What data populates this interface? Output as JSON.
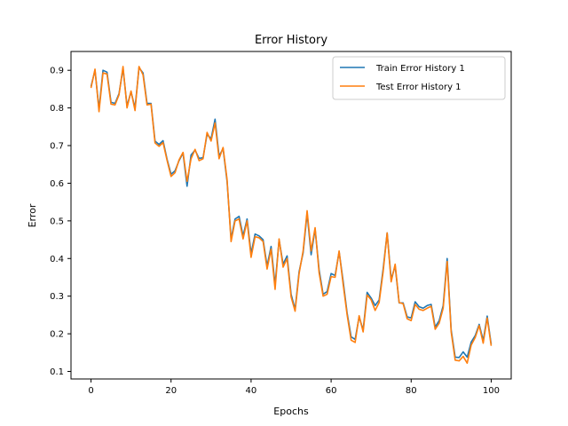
{
  "chart_data": {
    "type": "line",
    "title": "Error History",
    "xlabel": "Epochs",
    "ylabel": "Error",
    "xlim": [
      -5,
      105
    ],
    "ylim": [
      0.08,
      0.95
    ],
    "xticks": [
      0,
      20,
      40,
      60,
      80,
      100
    ],
    "yticks": [
      0.1,
      0.2,
      0.3,
      0.4,
      0.5,
      0.6,
      0.7,
      0.8,
      0.9
    ],
    "grid": false,
    "legend_position": "top-right",
    "series": [
      {
        "name": "Train Error History 1",
        "color": "#1f77b4",
        "values": [
          0.857,
          0.9,
          0.797,
          0.9,
          0.895,
          0.815,
          0.812,
          0.838,
          0.905,
          0.805,
          0.843,
          0.8,
          0.907,
          0.893,
          0.812,
          0.812,
          0.712,
          0.703,
          0.713,
          0.664,
          0.624,
          0.633,
          0.66,
          0.68,
          0.592,
          0.675,
          0.688,
          0.666,
          0.668,
          0.73,
          0.718,
          0.77,
          0.672,
          0.692,
          0.605,
          0.452,
          0.505,
          0.512,
          0.46,
          0.505,
          0.413,
          0.465,
          0.46,
          0.45,
          0.38,
          0.432,
          0.33,
          0.45,
          0.385,
          0.407,
          0.305,
          0.265,
          0.365,
          0.415,
          0.52,
          0.41,
          0.478,
          0.37,
          0.305,
          0.312,
          0.36,
          0.355,
          0.418,
          0.34,
          0.255,
          0.192,
          0.185,
          0.245,
          0.21,
          0.31,
          0.295,
          0.275,
          0.29,
          0.372,
          0.468,
          0.345,
          0.38,
          0.282,
          0.282,
          0.245,
          0.242,
          0.285,
          0.272,
          0.268,
          0.275,
          0.278,
          0.218,
          0.235,
          0.275,
          0.4,
          0.21,
          0.138,
          0.137,
          0.152,
          0.138,
          0.178,
          0.195,
          0.225,
          0.182,
          0.247,
          0.172
        ]
      },
      {
        "name": "Test Error History 1",
        "color": "#ff7f0e",
        "values": [
          0.853,
          0.903,
          0.79,
          0.893,
          0.89,
          0.81,
          0.808,
          0.835,
          0.91,
          0.8,
          0.845,
          0.793,
          0.91,
          0.888,
          0.808,
          0.81,
          0.707,
          0.698,
          0.708,
          0.661,
          0.618,
          0.628,
          0.662,
          0.682,
          0.605,
          0.665,
          0.69,
          0.66,
          0.665,
          0.735,
          0.712,
          0.76,
          0.665,
          0.695,
          0.61,
          0.445,
          0.5,
          0.505,
          0.452,
          0.5,
          0.403,
          0.458,
          0.455,
          0.445,
          0.372,
          0.425,
          0.318,
          0.452,
          0.377,
          0.4,
          0.298,
          0.26,
          0.36,
          0.42,
          0.527,
          0.42,
          0.482,
          0.362,
          0.3,
          0.305,
          0.352,
          0.35,
          0.42,
          0.332,
          0.25,
          0.183,
          0.177,
          0.248,
          0.205,
          0.303,
          0.29,
          0.262,
          0.283,
          0.365,
          0.468,
          0.338,
          0.385,
          0.283,
          0.28,
          0.24,
          0.235,
          0.278,
          0.265,
          0.262,
          0.268,
          0.273,
          0.212,
          0.228,
          0.268,
          0.392,
          0.205,
          0.13,
          0.128,
          0.14,
          0.122,
          0.17,
          0.19,
          0.222,
          0.175,
          0.242,
          0.168
        ]
      }
    ]
  }
}
